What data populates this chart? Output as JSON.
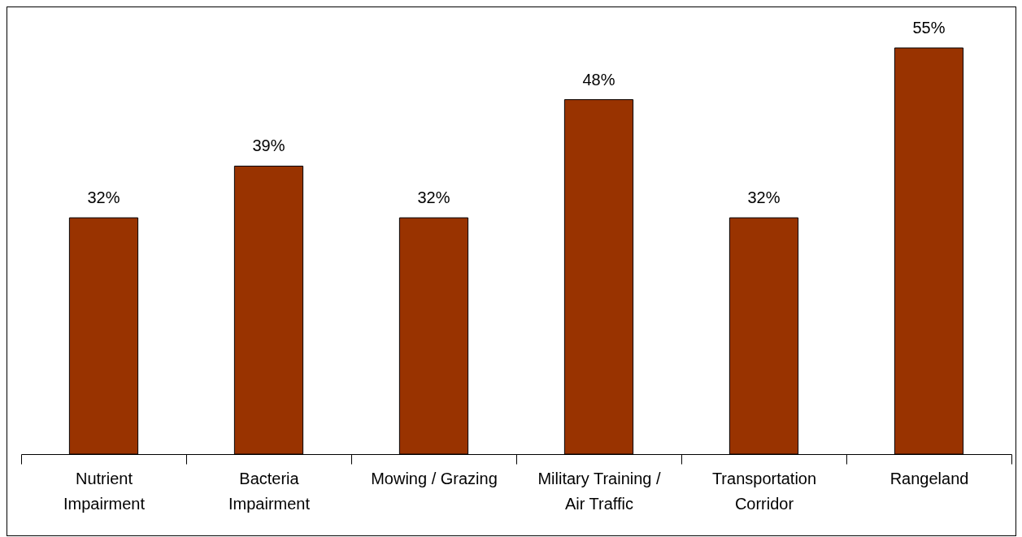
{
  "chart_data": {
    "type": "bar",
    "categories": [
      "Nutrient Impairment",
      "Bacteria Impairment",
      "Mowing / Grazing",
      "Military Training / Air Traffic",
      "Transportation Corridor",
      "Rangeland"
    ],
    "values": [
      32,
      39,
      32,
      48,
      32,
      55
    ],
    "value_labels": [
      "32%",
      "39%",
      "32%",
      "48%",
      "32%",
      "55%"
    ],
    "color": "#993300",
    "tick_labels": "x"
  }
}
